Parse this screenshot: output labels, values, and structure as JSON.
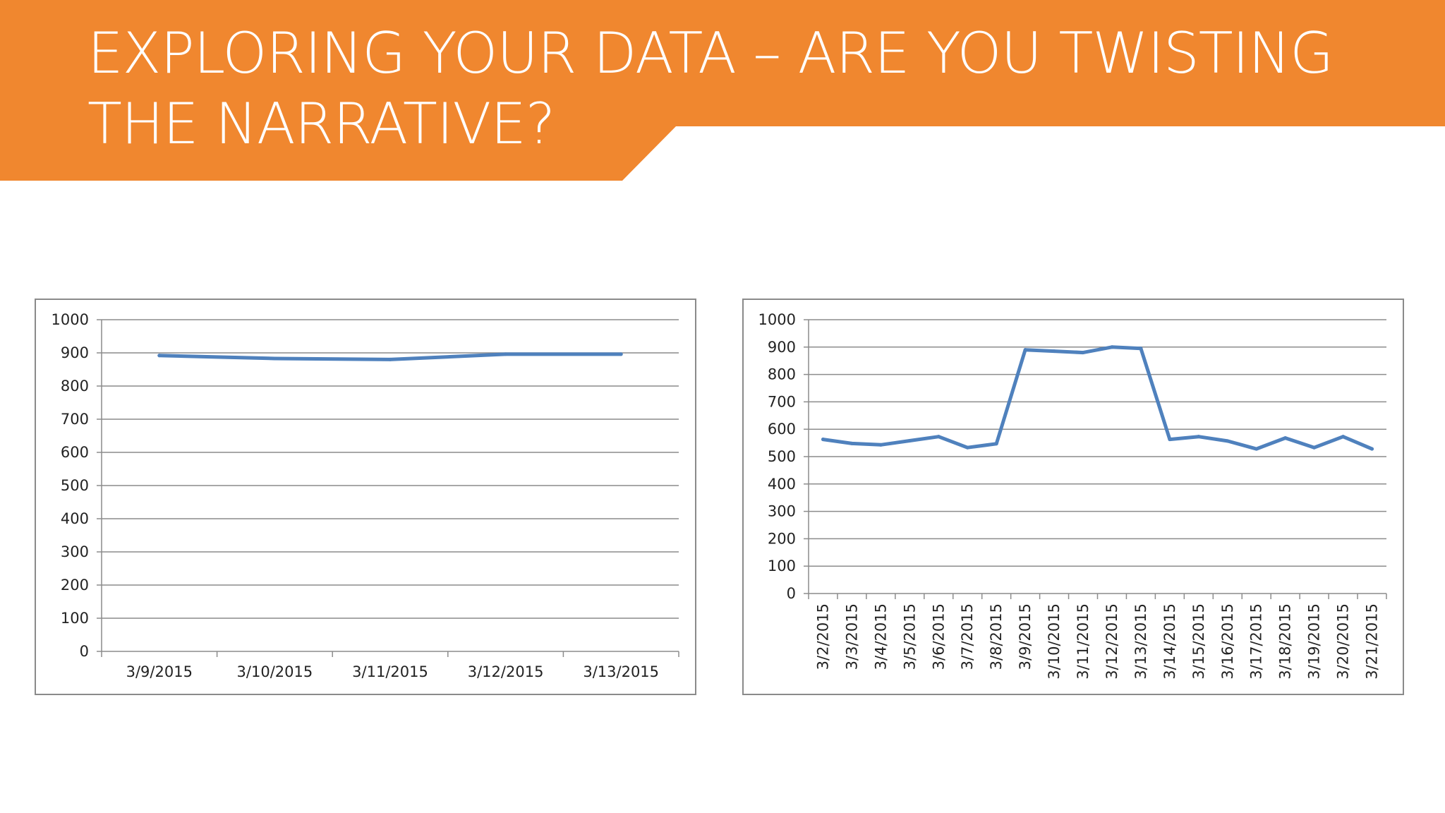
{
  "slide": {
    "title": "EXPLORING YOUR DATA – ARE YOU TWISTING THE NARRATIVE?",
    "accent_color": "#f0872f"
  },
  "chart_data": [
    {
      "type": "line",
      "title": "",
      "xlabel": "",
      "ylabel": "",
      "x": [
        "3/9/2015",
        "3/10/2015",
        "3/11/2015",
        "3/12/2015",
        "3/13/2015"
      ],
      "series": [
        {
          "values": [
            892,
            883,
            880,
            896,
            896
          ],
          "color": "#4f81bd"
        }
      ],
      "ylim": [
        0,
        1000
      ],
      "yticks": [
        0,
        100,
        200,
        300,
        400,
        500,
        600,
        700,
        800,
        900,
        1000
      ],
      "grid": true,
      "x_label_orientation": "horizontal",
      "legend": "none"
    },
    {
      "type": "line",
      "title": "",
      "xlabel": "",
      "ylabel": "",
      "x": [
        "3/2/2015",
        "3/3/2015",
        "3/4/2015",
        "3/5/2015",
        "3/6/2015",
        "3/7/2015",
        "3/8/2015",
        "3/9/2015",
        "3/10/2015",
        "3/11/2015",
        "3/12/2015",
        "3/13/2015",
        "3/14/2015",
        "3/15/2015",
        "3/16/2015",
        "3/17/2015",
        "3/18/2015",
        "3/19/2015",
        "3/20/2015",
        "3/21/2015"
      ],
      "series": [
        {
          "values": [
            563,
            548,
            543,
            558,
            573,
            533,
            547,
            890,
            885,
            880,
            900,
            895,
            563,
            573,
            557,
            528,
            568,
            533,
            573,
            528
          ],
          "color": "#4f81bd"
        }
      ],
      "ylim": [
        0,
        1000
      ],
      "yticks": [
        0,
        100,
        200,
        300,
        400,
        500,
        600,
        700,
        800,
        900,
        1000
      ],
      "grid": true,
      "x_label_orientation": "vertical",
      "legend": "none"
    }
  ]
}
